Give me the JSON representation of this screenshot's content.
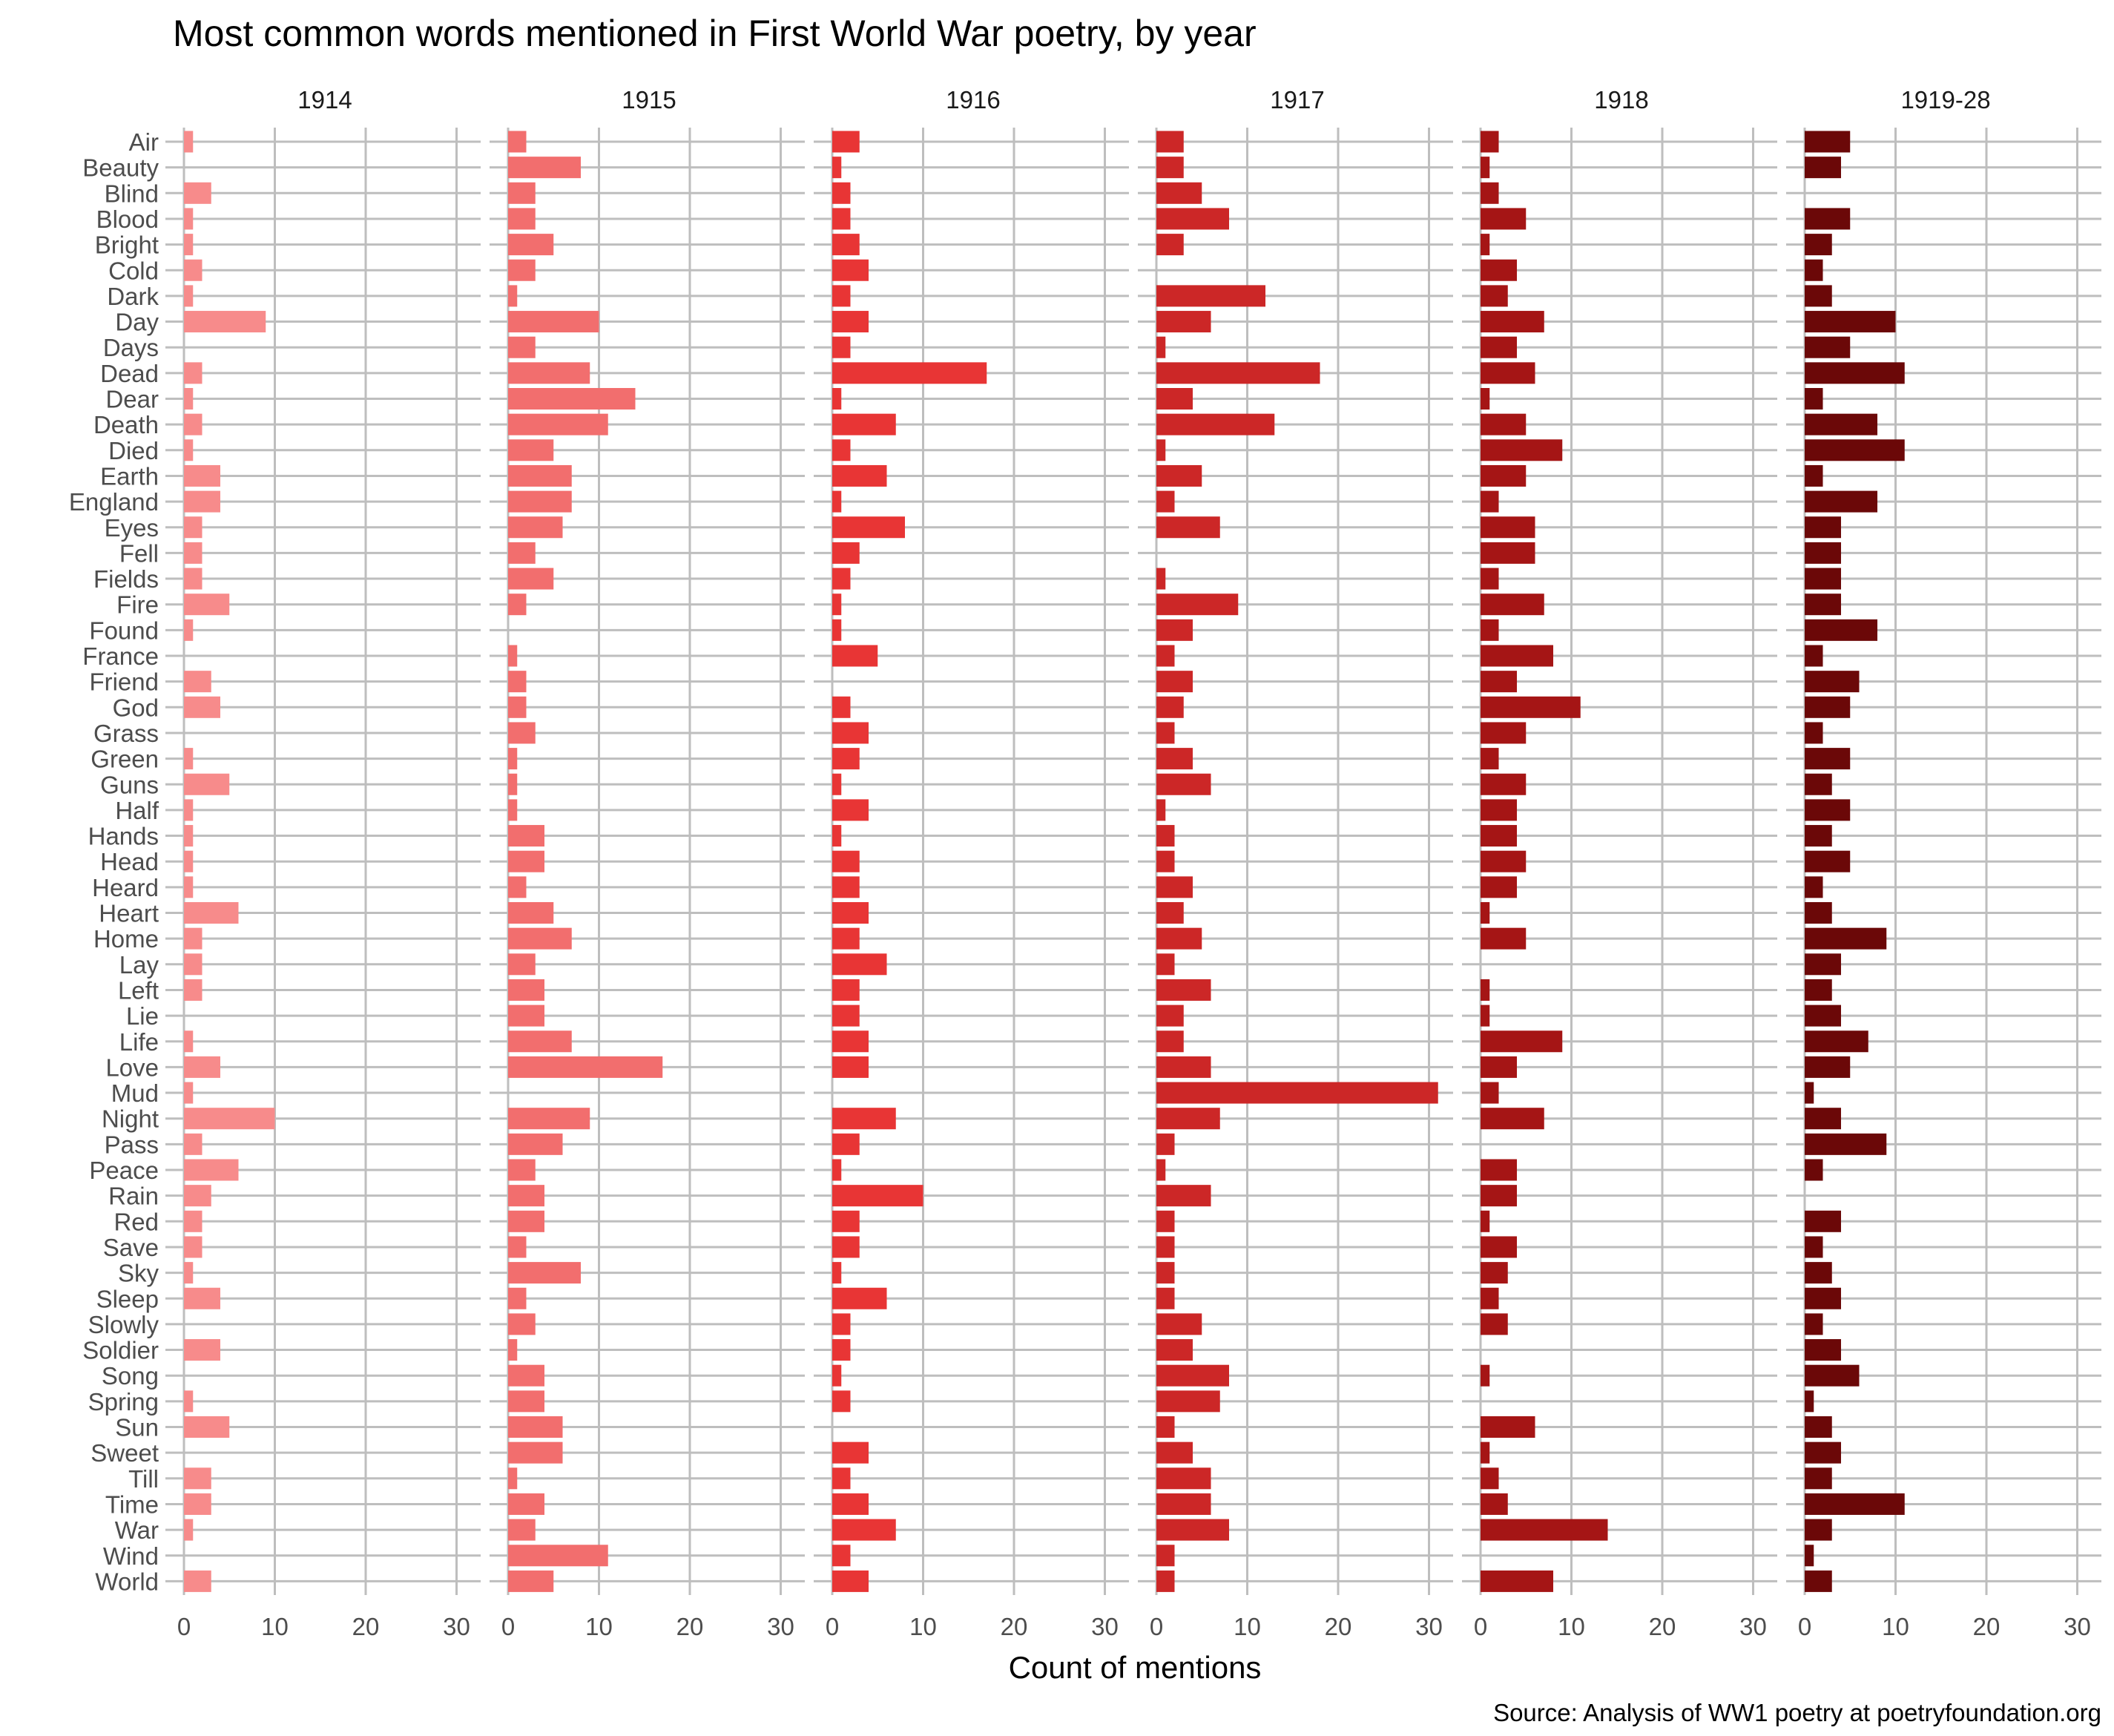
{
  "chart_data": {
    "type": "bar",
    "orientation": "horizontal",
    "title": "Most common words mentioned in First World War poetry, by year",
    "xlabel": "Count of mentions",
    "ylabel": "",
    "caption": "Source: Analysis of WW1 poetry at poetryfoundation.org",
    "xlim": [
      0,
      32
    ],
    "xticks": [
      0,
      10,
      20,
      30
    ],
    "grid": true,
    "legend": "none",
    "categories": [
      "Air",
      "Beauty",
      "Blind",
      "Blood",
      "Bright",
      "Cold",
      "Dark",
      "Day",
      "Days",
      "Dead",
      "Dear",
      "Death",
      "Died",
      "Earth",
      "England",
      "Eyes",
      "Fell",
      "Fields",
      "Fire",
      "Found",
      "France",
      "Friend",
      "God",
      "Grass",
      "Green",
      "Guns",
      "Half",
      "Hands",
      "Head",
      "Heard",
      "Heart",
      "Home",
      "Lay",
      "Left",
      "Lie",
      "Life",
      "Love",
      "Mud",
      "Night",
      "Pass",
      "Peace",
      "Rain",
      "Red",
      "Save",
      "Sky",
      "Sleep",
      "Slowly",
      "Soldier",
      "Song",
      "Spring",
      "Sun",
      "Sweet",
      "Till",
      "Time",
      "War",
      "Wind",
      "World"
    ],
    "series": [
      {
        "name": "1914",
        "color": "#f78b8b",
        "values": [
          1,
          0,
          3,
          1,
          1,
          2,
          1,
          9,
          0,
          2,
          1,
          2,
          1,
          4,
          4,
          2,
          2,
          2,
          5,
          1,
          0,
          3,
          4,
          0,
          1,
          5,
          1,
          1,
          1,
          1,
          6,
          2,
          2,
          2,
          0,
          1,
          4,
          1,
          10,
          2,
          6,
          3,
          2,
          2,
          1,
          4,
          0,
          4,
          0,
          1,
          5,
          0,
          3,
          3,
          1,
          0,
          3
        ]
      },
      {
        "name": "1915",
        "color": "#f26e6e",
        "values": [
          2,
          8,
          3,
          3,
          5,
          3,
          1,
          10,
          3,
          9,
          14,
          11,
          5,
          7,
          7,
          6,
          3,
          5,
          2,
          0,
          1,
          2,
          2,
          3,
          1,
          1,
          1,
          4,
          4,
          2,
          5,
          7,
          3,
          4,
          4,
          7,
          17,
          0,
          9,
          6,
          3,
          4,
          4,
          2,
          8,
          2,
          3,
          1,
          4,
          4,
          6,
          6,
          1,
          4,
          3,
          11,
          5
        ]
      },
      {
        "name": "1916",
        "color": "#e83535",
        "values": [
          3,
          1,
          2,
          2,
          3,
          4,
          2,
          4,
          2,
          17,
          1,
          7,
          2,
          6,
          1,
          8,
          3,
          2,
          1,
          1,
          5,
          0,
          2,
          4,
          3,
          1,
          4,
          1,
          3,
          3,
          4,
          3,
          6,
          3,
          3,
          4,
          4,
          0,
          7,
          3,
          1,
          10,
          3,
          3,
          1,
          6,
          2,
          2,
          1,
          2,
          0,
          4,
          2,
          4,
          7,
          2,
          4
        ]
      },
      {
        "name": "1917",
        "color": "#cc2727",
        "values": [
          3,
          3,
          5,
          8,
          3,
          0,
          12,
          6,
          1,
          18,
          4,
          13,
          1,
          5,
          2,
          7,
          0,
          1,
          9,
          4,
          2,
          4,
          3,
          2,
          4,
          6,
          1,
          2,
          2,
          4,
          3,
          5,
          2,
          6,
          3,
          3,
          6,
          31,
          7,
          2,
          1,
          6,
          2,
          2,
          2,
          2,
          5,
          4,
          8,
          7,
          2,
          4,
          6,
          6,
          8,
          2,
          2
        ]
      },
      {
        "name": "1918",
        "color": "#a51515",
        "values": [
          2,
          1,
          2,
          5,
          1,
          4,
          3,
          7,
          4,
          6,
          1,
          5,
          9,
          5,
          2,
          6,
          6,
          2,
          7,
          2,
          8,
          4,
          11,
          5,
          2,
          5,
          4,
          4,
          5,
          4,
          1,
          5,
          0,
          1,
          1,
          9,
          4,
          2,
          7,
          0,
          4,
          4,
          1,
          4,
          3,
          2,
          3,
          0,
          1,
          0,
          6,
          1,
          2,
          3,
          14,
          0,
          8
        ]
      },
      {
        "name": "1919-28",
        "color": "#6b0808",
        "values": [
          5,
          4,
          0,
          5,
          3,
          2,
          3,
          10,
          5,
          11,
          2,
          8,
          11,
          2,
          8,
          4,
          4,
          4,
          4,
          8,
          2,
          6,
          5,
          2,
          5,
          3,
          5,
          3,
          5,
          2,
          3,
          9,
          4,
          3,
          4,
          7,
          5,
          1,
          4,
          9,
          2,
          0,
          4,
          2,
          3,
          4,
          2,
          4,
          6,
          1,
          3,
          4,
          3,
          11,
          3,
          1,
          3
        ]
      }
    ]
  }
}
